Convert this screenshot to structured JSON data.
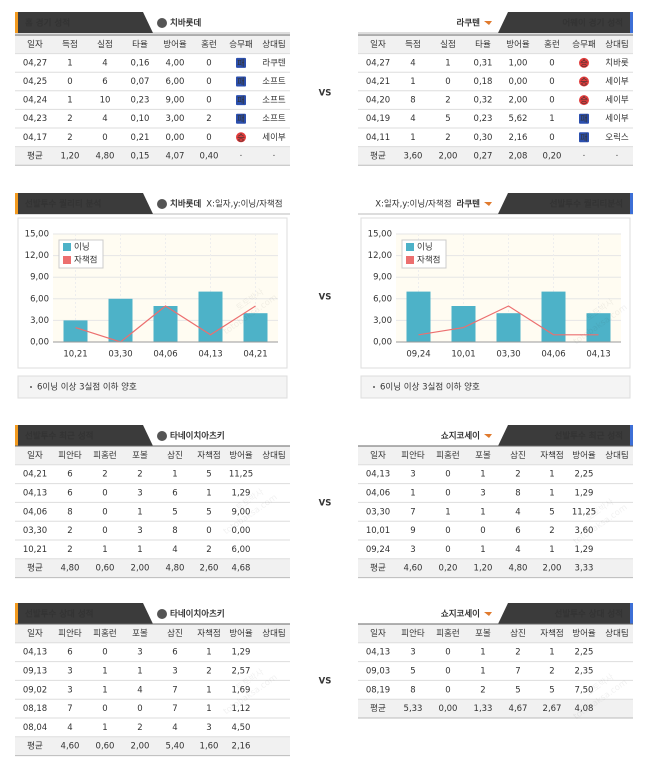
{
  "vs": "VS",
  "watermark": [
    "토토박사",
    "totobaksa.com"
  ],
  "blocks": [
    {
      "columns": [
        "일자",
        "득점",
        "실점",
        "타율",
        "방어율",
        "홈런",
        "승무패",
        "상대팀"
      ],
      "left": {
        "title": "홈 경기 성적",
        "team": "치바롯데",
        "rows": [
          [
            "04,27",
            "1",
            "4",
            "0,16",
            "4,00",
            "0",
            "패",
            "라쿠텐"
          ],
          [
            "04,25",
            "0",
            "6",
            "0,07",
            "6,00",
            "0",
            "패",
            "소프트"
          ],
          [
            "04,24",
            "1",
            "10",
            "0,23",
            "9,00",
            "0",
            "패",
            "소프트"
          ],
          [
            "04,23",
            "2",
            "4",
            "0,10",
            "3,00",
            "2",
            "패",
            "소프트"
          ],
          [
            "04,17",
            "2",
            "0",
            "0,21",
            "0,00",
            "0",
            "승",
            "세이부"
          ]
        ],
        "average": [
          "평균",
          "1,20",
          "4,80",
          "0,15",
          "4,07",
          "0,40",
          "·",
          "·"
        ]
      },
      "right": {
        "title": "어웨이 경기 성적",
        "team": "라쿠텐",
        "rows": [
          [
            "04,27",
            "4",
            "1",
            "0,31",
            "1,00",
            "0",
            "승",
            "치바롯"
          ],
          [
            "04,21",
            "1",
            "0",
            "0,18",
            "0,00",
            "0",
            "승",
            "세이부"
          ],
          [
            "04,20",
            "8",
            "2",
            "0,32",
            "2,00",
            "0",
            "승",
            "세이부"
          ],
          [
            "04,19",
            "4",
            "5",
            "0,23",
            "5,62",
            "1",
            "패",
            "세이부"
          ],
          [
            "04,11",
            "1",
            "2",
            "0,30",
            "2,16",
            "0",
            "패",
            "오릭스"
          ]
        ],
        "average": [
          "평균",
          "3,60",
          "2,00",
          "0,27",
          "2,08",
          "0,20",
          "·",
          "·"
        ]
      }
    },
    {
      "columns": [
        "일자",
        "피안타",
        "피홈런",
        "포볼",
        "삼진",
        "자책점",
        "방어율",
        "상대팀"
      ],
      "left": {
        "title": "선발투수 최근 성적",
        "team": "타네이치아츠키",
        "rows": [
          [
            "04,21",
            "6",
            "2",
            "2",
            "1",
            "5",
            "11,25"
          ],
          [
            "04,13",
            "6",
            "0",
            "3",
            "6",
            "1",
            "1,29"
          ],
          [
            "04,06",
            "8",
            "0",
            "1",
            "5",
            "5",
            "9,00"
          ],
          [
            "03,30",
            "2",
            "0",
            "3",
            "8",
            "0",
            "0,00"
          ],
          [
            "10,21",
            "2",
            "1",
            "1",
            "4",
            "2",
            "6,00"
          ]
        ],
        "average": [
          "평균",
          "4,80",
          "0,60",
          "2,00",
          "4,80",
          "2,60",
          "4,68"
        ]
      },
      "right": {
        "title": "선발투수 최근 성적",
        "team": "쇼지코세이",
        "rows": [
          [
            "04,13",
            "3",
            "0",
            "1",
            "2",
            "1",
            "2,25"
          ],
          [
            "04,06",
            "1",
            "0",
            "3",
            "8",
            "1",
            "1,29"
          ],
          [
            "03,30",
            "7",
            "1",
            "1",
            "4",
            "5",
            "11,25"
          ],
          [
            "10,01",
            "9",
            "0",
            "0",
            "6",
            "2",
            "3,60"
          ],
          [
            "09,24",
            "3",
            "0",
            "1",
            "4",
            "1",
            "1,29"
          ]
        ],
        "average": [
          "평균",
          "4,60",
          "0,20",
          "1,20",
          "4,80",
          "2,00",
          "3,33"
        ]
      }
    },
    {
      "columns": [
        "일자",
        "피안타",
        "피홈런",
        "포볼",
        "삼진",
        "자책점",
        "방어율",
        "상대팀"
      ],
      "left": {
        "title": "선발투수 상대 성적",
        "team": "타네이치아츠키",
        "rows": [
          [
            "04,13",
            "6",
            "0",
            "3",
            "6",
            "1",
            "1,29"
          ],
          [
            "09,13",
            "3",
            "1",
            "1",
            "3",
            "2",
            "2,57"
          ],
          [
            "09,02",
            "3",
            "1",
            "4",
            "7",
            "1",
            "1,69"
          ],
          [
            "08,18",
            "7",
            "0",
            "0",
            "7",
            "1",
            "1,12"
          ],
          [
            "08,04",
            "4",
            "1",
            "2",
            "4",
            "3",
            "4,50"
          ]
        ],
        "average": [
          "평균",
          "4,60",
          "0,60",
          "2,00",
          "5,40",
          "1,60",
          "2,16"
        ]
      },
      "right": {
        "title": "선발투수 상대 성적",
        "team": "쇼지코세이",
        "rows": [
          [
            "04,13",
            "3",
            "0",
            "1",
            "2",
            "1",
            "2,25"
          ],
          [
            "09,03",
            "5",
            "0",
            "1",
            "7",
            "2",
            "2,35"
          ],
          [
            "08,19",
            "8",
            "0",
            "2",
            "5",
            "5",
            "7,50"
          ]
        ],
        "average": [
          "평균",
          "5,33",
          "0,00",
          "1,33",
          "4,67",
          "2,67",
          "4,08"
        ]
      }
    }
  ],
  "chart_data": [
    {
      "type": "bar",
      "title": "선발투수 퀄리티 분석",
      "team": "치바롯데",
      "axis_note": "X:일자,y:이닝/자책점",
      "categories": [
        "10,21",
        "03,30",
        "04,06",
        "04,13",
        "04,21"
      ],
      "series": [
        {
          "name": "이닝",
          "color": "#4db2c8",
          "values": [
            3,
            6,
            5,
            7,
            4
          ]
        },
        {
          "name": "자책점",
          "color": "#ec6f6f",
          "type": "line",
          "values": [
            2,
            0,
            5,
            1,
            5
          ]
        }
      ],
      "ylim": [
        0,
        15
      ],
      "yticks": [
        {
          "value": 0,
          "label": "0,00"
        },
        {
          "value": 3,
          "label": "3,00"
        },
        {
          "value": 6,
          "label": "6,00"
        },
        {
          "value": 9,
          "label": "9,00"
        },
        {
          "value": 12,
          "label": "12,00"
        },
        {
          "value": 15,
          "label": "15,00"
        }
      ],
      "note": "6이닝 이상 3실점 이하 양호"
    },
    {
      "type": "bar",
      "title": "선발투수 퀄리티분석",
      "team": "라쿠텐",
      "axis_note": "X:일자,y:이닝/자책점",
      "categories": [
        "09,24",
        "10,01",
        "03,30",
        "04,06",
        "04,13"
      ],
      "series": [
        {
          "name": "이닝",
          "color": "#4db2c8",
          "values": [
            7,
            5,
            4,
            7,
            4
          ]
        },
        {
          "name": "자책점",
          "color": "#ec6f6f",
          "type": "line",
          "values": [
            1,
            2,
            5,
            1,
            1
          ]
        }
      ],
      "ylim": [
        0,
        15
      ],
      "yticks": [
        {
          "value": 0,
          "label": "0,00"
        },
        {
          "value": 3,
          "label": "3,00"
        },
        {
          "value": 6,
          "label": "6,00"
        },
        {
          "value": 9,
          "label": "9,00"
        },
        {
          "value": 12,
          "label": "12,00"
        },
        {
          "value": 15,
          "label": "15,00"
        }
      ],
      "note": "6이닝 이상 3실점 이하 양호"
    }
  ]
}
